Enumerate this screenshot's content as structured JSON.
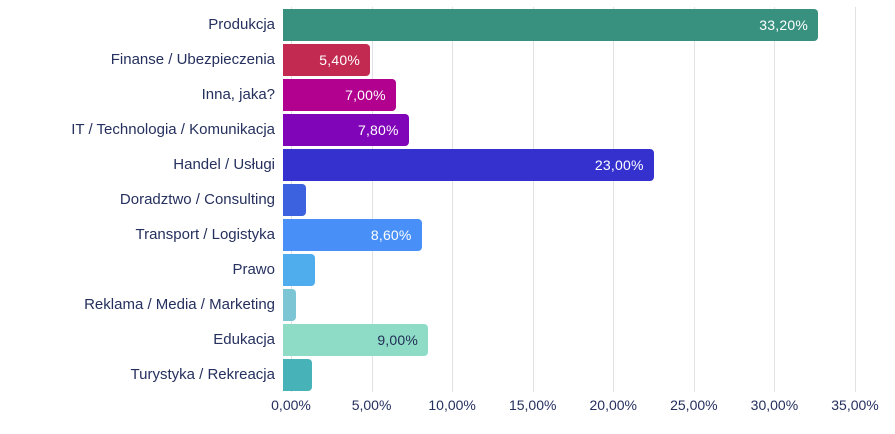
{
  "chart_data": {
    "type": "bar",
    "orientation": "horizontal",
    "title": "",
    "xlabel": "",
    "ylabel": "",
    "xlim": [
      0,
      35
    ],
    "grid": "vertical",
    "legend": false,
    "categories": [
      "Produkcja",
      "Finanse / Ubezpieczenia",
      "Inna, jaka?",
      "IT / Technologia / Komunikacja",
      "Handel / Usługi",
      "Doradztwo / Consulting",
      "Transport / Logistyka",
      "Prawo",
      "Reklama / Media / Marketing",
      "Edukacja",
      "Turystyka / Rekreacja"
    ],
    "values": [
      33.2,
      5.4,
      7.0,
      7.8,
      23.0,
      1.4,
      8.6,
      2.0,
      0.8,
      9.0,
      1.8
    ],
    "value_labels": [
      "33,20%",
      "5,40%",
      "7,00%",
      "7,80%",
      "23,00%",
      "",
      "8,60%",
      "",
      "",
      "9,00%",
      ""
    ],
    "bar_colors": [
      "#38907f",
      "#c22a52",
      "#b2008f",
      "#8004b8",
      "#3431cf",
      "#3d62e0",
      "#4890f7",
      "#4fadee",
      "#7cc5d5",
      "#8edcc6",
      "#47b2b7"
    ],
    "label_text_colors": [
      "#ffffff",
      "#ffffff",
      "#ffffff",
      "#ffffff",
      "#ffffff",
      "",
      "#ffffff",
      "",
      "",
      "#1f2c54",
      ""
    ],
    "x_ticks": [
      "0,00%",
      "5,00%",
      "10,00%",
      "15,00%",
      "20,00%",
      "25,00%",
      "30,00%",
      "35,00%"
    ],
    "x_tick_step": 5
  },
  "style": {
    "gridline_color": "#e2e2e2",
    "label_color": "#25305e",
    "background": "#ffffff"
  }
}
